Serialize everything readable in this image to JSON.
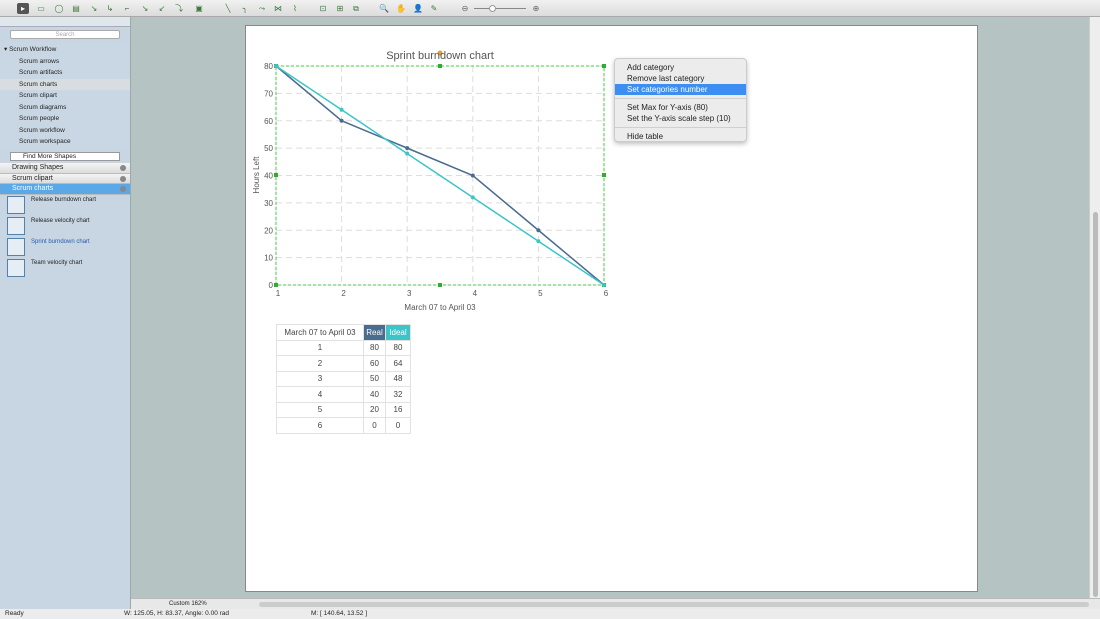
{
  "toolbar": {
    "tools": [
      "pointer",
      "rectangle",
      "ellipse",
      "text-box",
      "connector-1",
      "connector-2",
      "connector-3",
      "connector-4",
      "connector-5",
      "connector-6",
      "insert",
      "line",
      "arc",
      "bezier",
      "spline",
      "chain",
      "group",
      "ungroup",
      "arrange",
      "zoom",
      "pan",
      "user",
      "eyedropper"
    ],
    "zoom_out": "zoom-out",
    "zoom_in": "zoom-in",
    "zoom_level": 0.35
  },
  "sidebar": {
    "search_placeholder": "Search",
    "tree_header": "Scrum Workflow",
    "tree_items": [
      "Scrum arrows",
      "Scrum artifacts",
      "Scrum charts",
      "Scrum clipart",
      "Scrum diagrams",
      "Scrum people",
      "Scrum workflow",
      "Scrum workspace"
    ],
    "selected_tree_item": "Scrum charts",
    "find_more": "Find More Shapes",
    "categories": [
      "Drawing Shapes",
      "Scrum clipart",
      "Scrum charts"
    ],
    "library": [
      "Release burndown chart",
      "Release velocity chart",
      "Sprint burndown chart",
      "Team velocity chart"
    ]
  },
  "context_menu": {
    "items": [
      "Add category",
      "Remove last category",
      "Set categories number",
      "Set Max for Y-axis (80)",
      "Set the Y-axis scale step (10)",
      "Hide table"
    ],
    "highlighted": "Set categories number"
  },
  "chart_data": {
    "type": "line",
    "title": "Sprint burndown chart",
    "xlabel": "March 07 to April 03",
    "ylabel": "Hours Left",
    "categories": [
      1,
      2,
      3,
      4,
      5,
      6
    ],
    "ylim": [
      0,
      80
    ],
    "yticks": [
      0,
      10,
      20,
      30,
      40,
      50,
      60,
      70,
      80
    ],
    "grid": true,
    "series": [
      {
        "name": "Real",
        "values": [
          80,
          60,
          50,
          40,
          20,
          0
        ],
        "color": "#4a6c8e"
      },
      {
        "name": "Ideal",
        "values": [
          80,
          64,
          48,
          32,
          16,
          0
        ],
        "color": "#3cc4c8"
      }
    ]
  },
  "table": {
    "header": "March 07 to April 03",
    "col_real": "Real",
    "col_ideal": "Ideal"
  },
  "bottom": {
    "zoom_label": "Custom 162%"
  },
  "status": {
    "ready": "Ready",
    "dims": "W: 125.05,  H: 83.37,  Angle: 0.00 rad",
    "mouse": "M: [ 140.64, 13.52 ]"
  }
}
